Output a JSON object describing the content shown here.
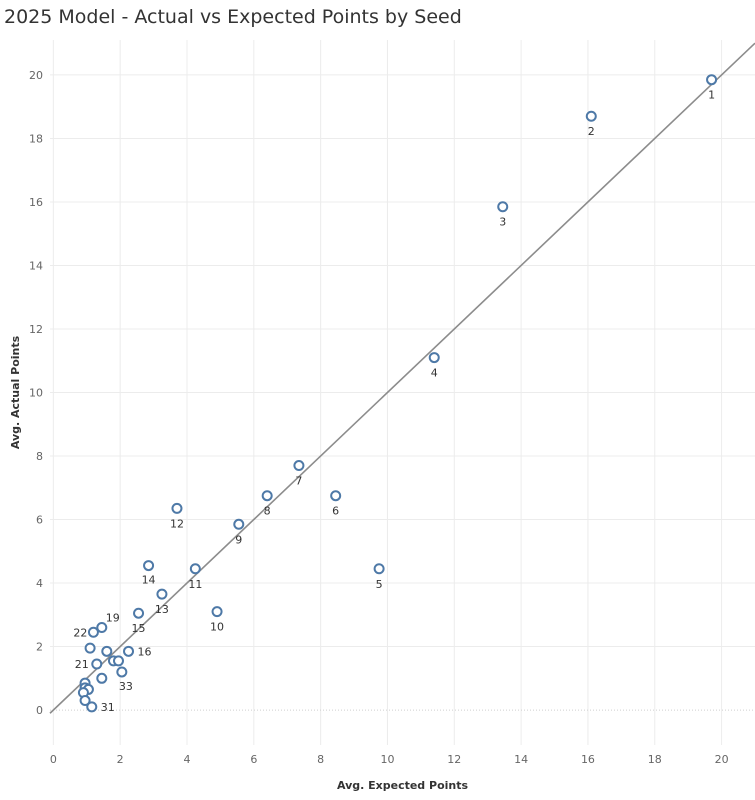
{
  "chart_data": {
    "type": "scatter",
    "title": "2025 Model - Actual vs Expected Points by Seed",
    "xlabel": "Avg. Expected Points",
    "ylabel": "Avg. Actual Points",
    "xlim": [
      -0.1,
      21
    ],
    "ylim": [
      -1.1,
      21.1
    ],
    "x_ticks": [
      0,
      2,
      4,
      6,
      8,
      10,
      12,
      14,
      16,
      18,
      20
    ],
    "y_ticks": [
      0,
      2,
      4,
      6,
      8,
      10,
      12,
      14,
      16,
      18,
      20
    ],
    "grid": true,
    "marker_color": "#4e79a7",
    "trend_line_color": "#8c8c8c",
    "trend_line": [
      [
        -0.1,
        -0.1
      ],
      [
        21,
        21
      ]
    ],
    "points": [
      {
        "x": 19.7,
        "y": 19.85,
        "label": "1"
      },
      {
        "x": 16.1,
        "y": 18.7,
        "label": "2"
      },
      {
        "x": 13.45,
        "y": 15.85,
        "label": "3"
      },
      {
        "x": 11.4,
        "y": 11.1,
        "label": "4"
      },
      {
        "x": 9.75,
        "y": 4.45,
        "label": "5"
      },
      {
        "x": 8.45,
        "y": 6.75,
        "label": "6"
      },
      {
        "x": 7.35,
        "y": 7.7,
        "label": "7"
      },
      {
        "x": 6.4,
        "y": 6.75,
        "label": "8"
      },
      {
        "x": 5.55,
        "y": 5.85,
        "label": "9"
      },
      {
        "x": 4.9,
        "y": 3.1,
        "label": "10"
      },
      {
        "x": 4.25,
        "y": 4.45,
        "label": "11"
      },
      {
        "x": 3.7,
        "y": 6.35,
        "label": "12"
      },
      {
        "x": 3.25,
        "y": 3.65,
        "label": "13"
      },
      {
        "x": 2.85,
        "y": 4.55,
        "label": "14"
      },
      {
        "x": 2.55,
        "y": 3.05,
        "label": "15"
      },
      {
        "x": 2.25,
        "y": 1.85,
        "label": "16"
      },
      {
        "x": 1.45,
        "y": 2.6,
        "label": "19"
      },
      {
        "x": 1.3,
        "y": 1.45,
        "label": "21"
      },
      {
        "x": 1.2,
        "y": 2.45,
        "label": "22"
      },
      {
        "x": 2.05,
        "y": 1.2,
        "label": "33"
      },
      {
        "x": 1.15,
        "y": 0.1,
        "label": "31"
      },
      {
        "x": 1.1,
        "y": 1.95,
        "label": ""
      },
      {
        "x": 1.6,
        "y": 1.85,
        "label": ""
      },
      {
        "x": 1.8,
        "y": 1.55,
        "label": ""
      },
      {
        "x": 1.95,
        "y": 1.55,
        "label": ""
      },
      {
        "x": 1.45,
        "y": 1.0,
        "label": ""
      },
      {
        "x": 0.95,
        "y": 0.85,
        "label": ""
      },
      {
        "x": 0.95,
        "y": 0.7,
        "label": ""
      },
      {
        "x": 1.05,
        "y": 0.65,
        "label": ""
      },
      {
        "x": 0.9,
        "y": 0.55,
        "label": ""
      },
      {
        "x": 0.95,
        "y": 0.3,
        "label": ""
      }
    ]
  }
}
